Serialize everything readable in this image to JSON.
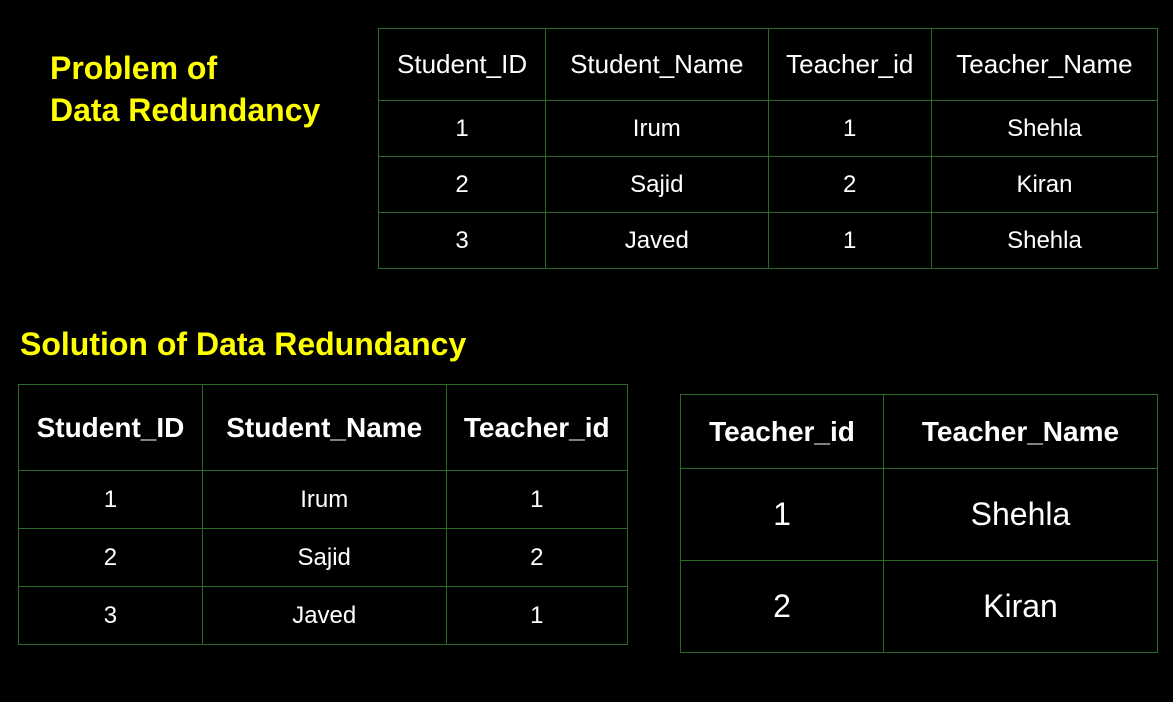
{
  "colors": {
    "background": "#000000",
    "text": "#ffffff",
    "heading": "#ffff00",
    "border": "#2a6b2a"
  },
  "typography": {
    "heading_fontsize": 32,
    "heading_weight": "bold",
    "table_header_fontsize": 26,
    "table_cell_fontsize": 24,
    "solution_header_fontsize": 28,
    "solution2_cell_fontsize": 32
  },
  "headings": {
    "problem": "Problem of\nData Redundancy",
    "problem_line1": "Problem of",
    "problem_line2": "Data Redundancy",
    "solution": "Solution of Data Redundancy"
  },
  "problem_table": {
    "type": "table",
    "columns": [
      "Student_ID",
      "Student_Name",
      "Teacher_id",
      "Teacher_Name"
    ],
    "rows": [
      [
        "1",
        "Irum",
        "1",
        "Shehla"
      ],
      [
        "2",
        "Sajid",
        "2",
        "Kiran"
      ],
      [
        "3",
        "Javed",
        "1",
        "Shehla"
      ]
    ]
  },
  "solution_table_1": {
    "type": "table",
    "columns": [
      "Student_ID",
      "Student_Name",
      "Teacher_id"
    ],
    "rows": [
      [
        "1",
        "Irum",
        "1"
      ],
      [
        "2",
        "Sajid",
        "2"
      ],
      [
        "3",
        "Javed",
        "1"
      ]
    ]
  },
  "solution_table_2": {
    "type": "table",
    "columns": [
      "Teacher_id",
      "Teacher_Name"
    ],
    "rows": [
      [
        "1",
        "Shehla"
      ],
      [
        "2",
        "Kiran"
      ]
    ]
  }
}
